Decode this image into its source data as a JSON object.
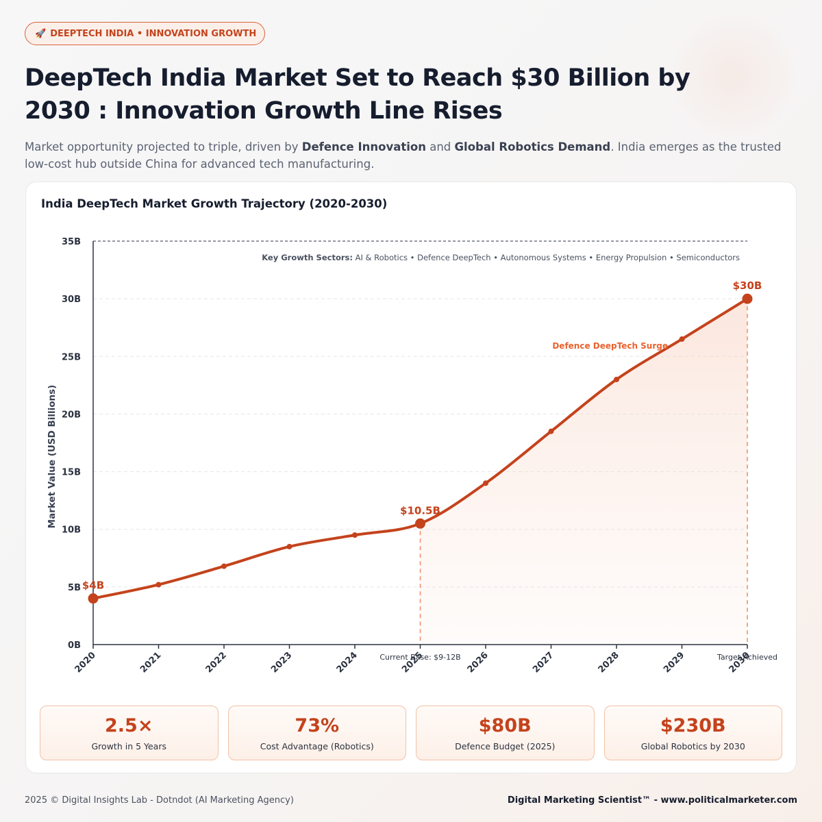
{
  "header": {
    "tag_icon": "rocket-icon",
    "tag_label": "DEEPTECH INDIA • INNOVATION GROWTH",
    "title": "DeepTech India Market Set to Reach $30 Billion by 2030 : Innovation Growth Line Rises",
    "subtitle": {
      "part1": "Market opportunity projected to triple, driven by ",
      "bold1": "Defence Innovation",
      "part2": " and ",
      "bold2": "Global Robotics Demand",
      "part3": ". India emerges as the trusted low-cost hub outside China for advanced tech manufacturing."
    }
  },
  "chart_data": {
    "type": "line",
    "title": "India DeepTech Market Growth Trajectory (2020-2030)",
    "ylabel": "Market Value (USD Billions)",
    "xlabel": "",
    "x": [
      "2020",
      "2021",
      "2022",
      "2023",
      "2024",
      "2025",
      "2026",
      "2027",
      "2028",
      "2029",
      "2030"
    ],
    "values": [
      4,
      5.2,
      6.8,
      8.5,
      9.5,
      10.5,
      14,
      18.5,
      23,
      26.5,
      30
    ],
    "ylim": [
      0,
      35
    ],
    "yticks": [
      0,
      5,
      10,
      15,
      20,
      25,
      30,
      35
    ],
    "ytick_labels": [
      "0B",
      "5B",
      "10B",
      "15B",
      "20B",
      "25B",
      "30B",
      "35B"
    ],
    "grid": true,
    "highlight_points": [
      {
        "x": "2020",
        "value": 4,
        "label": "$4B"
      },
      {
        "x": "2025",
        "value": 10.5,
        "label": "$10.5B"
      },
      {
        "x": "2030",
        "value": 30,
        "label": "$30B"
      }
    ],
    "annotations": {
      "sectors_bold": "Key Growth Sectors:",
      "sectors_text": " AI & Robotics • Defence DeepTech • Autonomous Systems • Energy Propulsion • Semiconductors",
      "surge": "Defence DeepTech Surge",
      "current_base": "Current Base: $9-12B",
      "target": "Target Achieved"
    },
    "colors": {
      "line": "#c4431c",
      "accent": "#e8622e",
      "axis_text": "#2b3240"
    }
  },
  "stats": [
    {
      "value": "2.5×",
      "label": "Growth in 5 Years"
    },
    {
      "value": "73%",
      "label": "Cost Advantage (Robotics)"
    },
    {
      "value": "$80B",
      "label": "Defence Budget (2025)"
    },
    {
      "value": "$230B",
      "label": "Global Robotics by 2030"
    }
  ],
  "footer": {
    "left": "2025 © Digital Insights Lab - Dotndot (AI Marketing Agency)",
    "right": "Digital Marketing Scientist™ - www.politicalmarketer.com"
  }
}
